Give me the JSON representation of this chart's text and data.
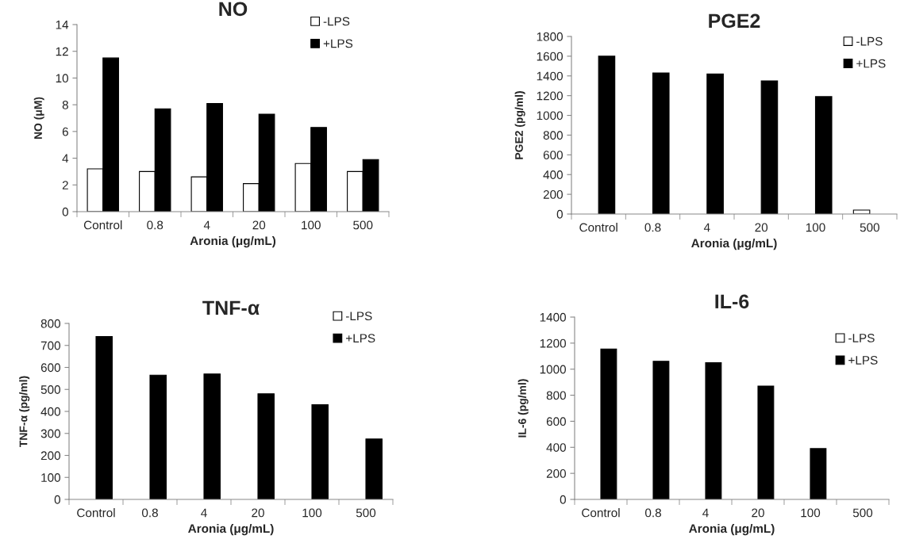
{
  "chart_data": [
    {
      "type": "bar",
      "title": "NO",
      "xlabel": "Aronia (μg/mL)",
      "ylabel": "NO (μM)",
      "categories": [
        "Control",
        "0.8",
        "4",
        "20",
        "100",
        "500"
      ],
      "ylim": [
        0,
        14
      ],
      "yticks": [
        0,
        2,
        4,
        6,
        8,
        10,
        12,
        14
      ],
      "legend": "top right",
      "series": [
        {
          "name": "-LPS",
          "color": "#ffffff",
          "values": [
            3.2,
            3.0,
            2.6,
            2.1,
            3.6,
            3.0
          ]
        },
        {
          "name": "+LPS",
          "color": "#000000",
          "values": [
            11.5,
            7.7,
            8.1,
            7.3,
            6.3,
            3.9
          ]
        }
      ]
    },
    {
      "type": "bar",
      "title": "PGE2",
      "xlabel": "Aronia (μg/mL)",
      "ylabel": "PGE2 (pg/ml)",
      "categories": [
        "Control",
        "0.8",
        "4",
        "20",
        "100",
        "500"
      ],
      "ylim": [
        0,
        1800
      ],
      "yticks": [
        0,
        200,
        400,
        600,
        800,
        1000,
        1200,
        1400,
        1600,
        1800
      ],
      "legend": "top right",
      "series": [
        {
          "name": "-LPS",
          "color": "#ffffff",
          "values": [
            null,
            null,
            null,
            null,
            null,
            40
          ]
        },
        {
          "name": "+LPS",
          "color": "#000000",
          "values": [
            1600,
            1430,
            1420,
            1350,
            1190,
            null
          ]
        }
      ]
    },
    {
      "type": "bar",
      "title": "TNF-α",
      "xlabel": "Aronia (μg/mL)",
      "ylabel": "TNF-α (pg/ml)",
      "categories": [
        "Control",
        "0.8",
        "4",
        "20",
        "100",
        "500"
      ],
      "ylim": [
        0,
        800
      ],
      "yticks": [
        0,
        100,
        200,
        300,
        400,
        500,
        600,
        700,
        800
      ],
      "legend": "top right",
      "series": [
        {
          "name": "-LPS",
          "color": "#ffffff",
          "values": [
            null,
            null,
            null,
            null,
            null,
            null
          ]
        },
        {
          "name": "+LPS",
          "color": "#000000",
          "values": [
            740,
            565,
            570,
            480,
            430,
            275
          ]
        }
      ]
    },
    {
      "type": "bar",
      "title": "IL-6",
      "xlabel": "Aronia (μg/mL)",
      "ylabel": "IL-6 (pg/ml)",
      "categories": [
        "Control",
        "0.8",
        "4",
        "20",
        "100",
        "500"
      ],
      "ylim": [
        0,
        1400
      ],
      "yticks": [
        0,
        200,
        400,
        600,
        800,
        1000,
        1200,
        1400
      ],
      "legend": "top right",
      "series": [
        {
          "name": "-LPS",
          "color": "#ffffff",
          "values": [
            null,
            null,
            null,
            null,
            null,
            null
          ]
        },
        {
          "name": "+LPS",
          "color": "#000000",
          "values": [
            1155,
            1060,
            1050,
            870,
            390,
            null
          ]
        }
      ]
    }
  ]
}
